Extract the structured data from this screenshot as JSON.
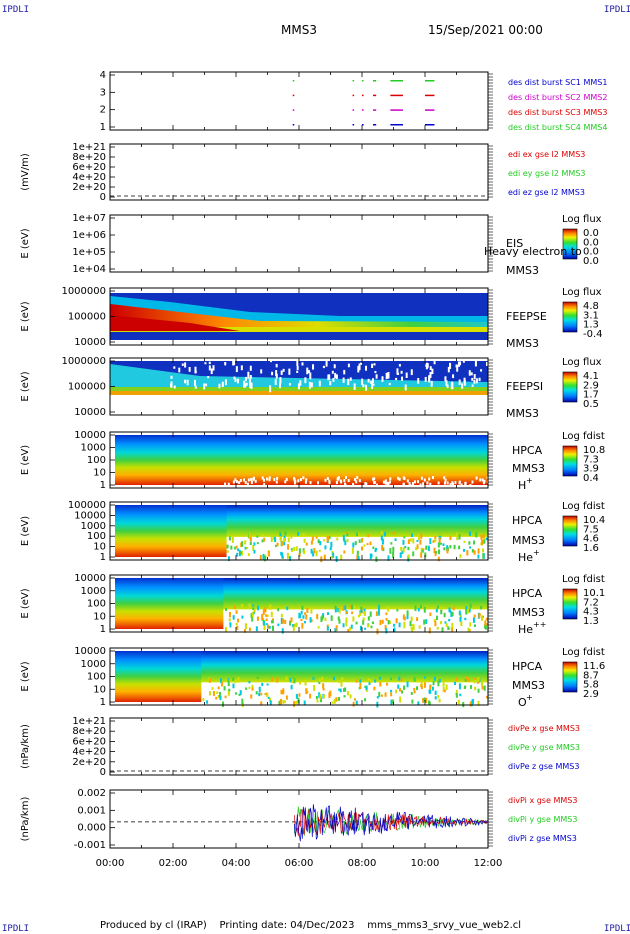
{
  "corners": {
    "tl": "IPDLI",
    "tr": "IPDLI",
    "bl": "IPDLI",
    "br": "IPDLI"
  },
  "header": {
    "spacecraft": "MMS3",
    "date": "15/Sep/2021 00:00"
  },
  "footer": {
    "produced_by": "Produced by cl (IRAP)",
    "printing_date": "Printing date: 04/Dec/2023",
    "file": "mms_mms3_srvy_vue_web2.cl"
  },
  "colors": {
    "blue": "#0000cc",
    "magenta": "#cc00cc",
    "red": "#dd0000",
    "green": "#22cc22"
  },
  "chart_data": [
    {
      "type": "scatter",
      "name": "burst",
      "y_ticks": [
        "1",
        "2",
        "3",
        "4"
      ],
      "legend": [
        {
          "text": "des dist burst SC1 MMS1",
          "color": "#0000cc"
        },
        {
          "text": "des dist burst SC2 MMS2",
          "color": "#cc00cc"
        },
        {
          "text": "des dist burst SC3 MMS3",
          "color": "#dd0000"
        },
        {
          "text": "des dist burst SC4 MMS4",
          "color": "#22cc22"
        }
      ],
      "intervals_hours": [
        [
          5.8,
          5.85
        ],
        [
          7.7,
          7.75
        ],
        [
          8.0,
          8.05
        ],
        [
          8.35,
          8.45
        ],
        [
          8.9,
          9.3
        ],
        [
          10.0,
          10.3
        ]
      ]
    },
    {
      "type": "line",
      "name": "edi",
      "ylabel": "(mV/m)",
      "y_ticks": [
        "0",
        "2e+20",
        "4e+20",
        "6e+20",
        "8e+20",
        "1e+21"
      ],
      "legend": [
        {
          "text": "edi ex gse l2 MMS3",
          "color": "#dd0000"
        },
        {
          "text": "edi ey gse l2 MMS3",
          "color": "#22cc22"
        },
        {
          "text": "edi ez gse l2 MMS3",
          "color": "#0000cc"
        }
      ]
    },
    {
      "type": "heatmap",
      "name": "eis",
      "ylabel": "E (eV)",
      "y_ticks": [
        "1e+04",
        "1e+05",
        "1e+06",
        "1e+07"
      ],
      "labels": [
        "EIS",
        "MMS3"
      ],
      "overlay": "Heavy electron to",
      "colorbar": {
        "title": "Log flux",
        "ticks": [
          "0.0",
          "0.0",
          "0.0",
          "0.0"
        ]
      }
    },
    {
      "type": "heatmap",
      "name": "feepse",
      "ylabel": "E (eV)",
      "y_ticks": [
        "10000",
        "100000",
        "1000000"
      ],
      "labels": [
        "FEEPSE",
        "MMS3"
      ],
      "colorbar": {
        "title": "Log flux",
        "ticks": [
          "4.8",
          "3.1",
          "1.3",
          "-0.4"
        ]
      }
    },
    {
      "type": "heatmap",
      "name": "feepsi",
      "ylabel": "E (eV)",
      "y_ticks": [
        "10000",
        "100000",
        "1000000"
      ],
      "labels": [
        "FEEPSI",
        "MMS3"
      ],
      "colorbar": {
        "title": "Log flux",
        "ticks": [
          "4.1",
          "2.9",
          "1.7",
          "0.5"
        ]
      }
    },
    {
      "type": "heatmap",
      "name": "hpca-h",
      "ylabel": "E (eV)",
      "y_ticks": [
        "1",
        "10",
        "100",
        "1000",
        "10000"
      ],
      "labels": [
        "HPCA",
        "MMS3"
      ],
      "species": "H",
      "charge": "+",
      "colorbar": {
        "title": "Log fdist",
        "ticks": [
          "10.8",
          "7.3",
          "3.9",
          "0.4"
        ]
      }
    },
    {
      "type": "heatmap",
      "name": "hpca-he",
      "ylabel": "E (eV)",
      "y_ticks": [
        "1",
        "10",
        "100",
        "1000",
        "10000",
        "100000"
      ],
      "labels": [
        "HPCA",
        "MMS3"
      ],
      "species": "He",
      "charge": "+",
      "colorbar": {
        "title": "Log fdist",
        "ticks": [
          "10.4",
          "7.5",
          "4.6",
          "1.6"
        ]
      }
    },
    {
      "type": "heatmap",
      "name": "hpca-he2",
      "ylabel": "E (eV)",
      "y_ticks": [
        "1",
        "10",
        "100",
        "1000",
        "10000"
      ],
      "labels": [
        "HPCA",
        "MMS3"
      ],
      "species": "He",
      "charge": "++",
      "colorbar": {
        "title": "Log fdist",
        "ticks": [
          "10.1",
          "7.2",
          "4.3",
          "1.3"
        ]
      }
    },
    {
      "type": "heatmap",
      "name": "hpca-o",
      "ylabel": "E (eV)",
      "y_ticks": [
        "1",
        "10",
        "100",
        "1000",
        "10000"
      ],
      "labels": [
        "HPCA",
        "MMS3"
      ],
      "species": "O",
      "charge": "+",
      "colorbar": {
        "title": "Log fdist",
        "ticks": [
          "11.6",
          "8.7",
          "5.8",
          "2.9"
        ]
      }
    },
    {
      "type": "line",
      "name": "divpe",
      "ylabel": "(nPa/km)",
      "y_ticks": [
        "0",
        "2e+20",
        "4e+20",
        "6e+20",
        "8e+20",
        "1e+21"
      ],
      "legend": [
        {
          "text": "divPe x gse MMS3",
          "color": "#dd0000"
        },
        {
          "text": "divPe y gse MMS3",
          "color": "#22cc22"
        },
        {
          "text": "divPe z gse MMS3",
          "color": "#0000cc"
        }
      ]
    },
    {
      "type": "line",
      "name": "divpi",
      "ylabel": "(nPa/km)",
      "y_ticks": [
        "-0.001",
        "0.000",
        "0.001",
        "0.002"
      ],
      "legend": [
        {
          "text": "divPi x gse MMS3",
          "color": "#dd0000"
        },
        {
          "text": "divPi y gse MMS3",
          "color": "#22cc22"
        },
        {
          "text": "divPi z gse MMS3",
          "color": "#0000cc"
        }
      ]
    }
  ],
  "x_axis": {
    "ticks": [
      "00:00",
      "02:00",
      "04:00",
      "06:00",
      "08:00",
      "10:00",
      "12:00"
    ],
    "xlim_hours": [
      0,
      12
    ]
  }
}
